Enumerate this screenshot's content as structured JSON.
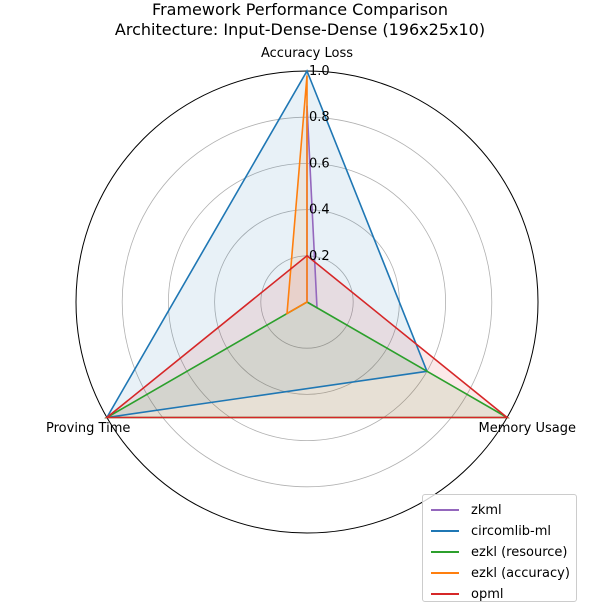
{
  "chart_data": {
    "type": "radar",
    "title": "Framework Performance Comparison",
    "subtitle": "Architecture: Input-Dense-Dense (196x25x10)",
    "axes": [
      "Accuracy Loss",
      "Memory Usage",
      "Proving Time"
    ],
    "rlim": [
      0,
      1.0
    ],
    "radial_ticks": [
      0.2,
      0.4,
      0.6,
      0.8,
      1.0
    ],
    "radial_tick_labels": [
      "0.2",
      "0.4",
      "0.6",
      "0.8",
      "1.0"
    ],
    "grid": true,
    "legend_position": "bottom-right",
    "series": [
      {
        "name": "zkml",
        "values": [
          0.85,
          0.05,
          0.0
        ],
        "color": "#9467bd",
        "fill": "#9467bd"
      },
      {
        "name": "circomlib-ml",
        "values": [
          1.0,
          0.6,
          1.0
        ],
        "color": "#1f77b4",
        "fill": "#1f77b4"
      },
      {
        "name": "ezkl (resource)",
        "values": [
          0.0,
          1.0,
          1.0
        ],
        "color": "#2ca02c",
        "fill": "#2ca02c"
      },
      {
        "name": "ezkl (accuracy)",
        "values": [
          0.98,
          0.0,
          0.1
        ],
        "color": "#ff7f0e",
        "fill": "#ff7f0e"
      },
      {
        "name": "opml",
        "values": [
          0.2,
          1.0,
          1.0
        ],
        "color": "#d62728",
        "fill": "#d62728"
      }
    ]
  }
}
